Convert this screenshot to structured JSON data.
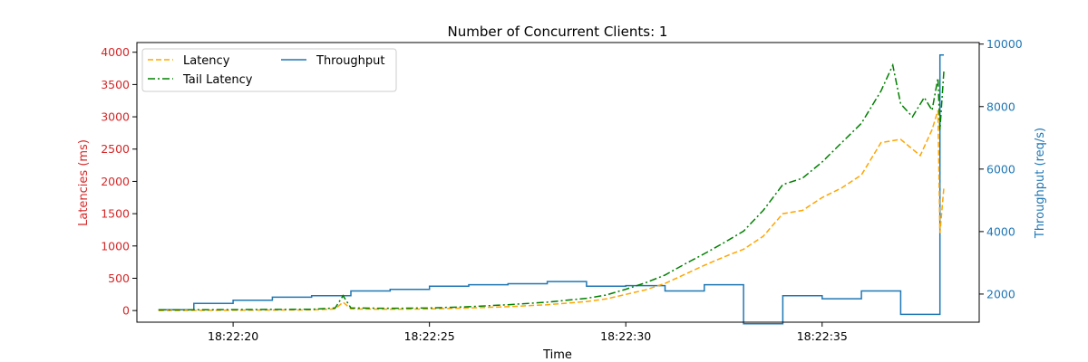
{
  "chart_data": {
    "type": "line",
    "title": "Number of Concurrent Clients: 1",
    "xlabel": "Time",
    "ylabel_left": "Latencies (ms)",
    "ylabel_right": "Throughput (req/s)",
    "x_ticks": [
      "18:22:20",
      "18:22:25",
      "18:22:30",
      "18:22:35"
    ],
    "x_tick_seconds": [
      20,
      25,
      30,
      35
    ],
    "xlim": [
      17.55,
      39.0
    ],
    "ylim_left": [
      -180,
      4150
    ],
    "ylim_right": [
      1100,
      10050
    ],
    "y_ticks_left": [
      0,
      500,
      1000,
      1500,
      2000,
      2500,
      3000,
      3500,
      4000
    ],
    "y_ticks_right": [
      2000,
      4000,
      6000,
      8000,
      10000
    ],
    "legend_position": "top-left",
    "grid": false,
    "colors": {
      "latency": "#FFA500",
      "tail": "#008000",
      "throughput": "#1f77b4",
      "left_axis": "#d62728",
      "right_axis": "#1f77b4"
    },
    "series": [
      {
        "name": "Latency",
        "axis": "left",
        "style": "dashed",
        "x": [
          18.1,
          19.0,
          20.0,
          21.0,
          22.0,
          22.6,
          22.8,
          23.0,
          24.0,
          25.0,
          26.0,
          27.0,
          28.0,
          29.0,
          29.5,
          30.0,
          30.5,
          31.0,
          31.5,
          32.0,
          32.5,
          33.0,
          33.5,
          34.0,
          34.5,
          35.0,
          35.5,
          36.0,
          36.5,
          37.0,
          37.5,
          37.8,
          37.95,
          38.0,
          38.1
        ],
        "y": [
          0,
          2,
          5,
          8,
          10,
          25,
          130,
          25,
          20,
          25,
          40,
          60,
          90,
          140,
          180,
          250,
          320,
          420,
          560,
          700,
          830,
          950,
          1150,
          1500,
          1550,
          1750,
          1900,
          2100,
          2600,
          2650,
          2400,
          2800,
          3100,
          1200,
          1900
        ]
      },
      {
        "name": "Tail Latency",
        "axis": "left",
        "style": "dashdot",
        "x": [
          18.1,
          19.0,
          20.0,
          21.0,
          22.0,
          22.6,
          22.8,
          23.0,
          24.0,
          25.0,
          26.0,
          27.0,
          28.0,
          29.0,
          29.5,
          30.0,
          30.5,
          31.0,
          31.5,
          32.0,
          32.5,
          33.0,
          33.5,
          34.0,
          34.5,
          35.0,
          35.5,
          36.0,
          36.5,
          36.8,
          37.0,
          37.3,
          37.6,
          37.8,
          37.95,
          38.0,
          38.1
        ],
        "y": [
          10,
          12,
          15,
          18,
          20,
          40,
          230,
          40,
          35,
          40,
          60,
          90,
          130,
          190,
          240,
          330,
          430,
          550,
          720,
          880,
          1050,
          1230,
          1550,
          1950,
          2050,
          2300,
          2600,
          2900,
          3400,
          3800,
          3200,
          3000,
          3300,
          3100,
          3600,
          2800,
          3700
        ]
      },
      {
        "name": "Throughput",
        "axis": "right",
        "style": "solid",
        "step": true,
        "x": [
          18.1,
          19.0,
          20.0,
          21.0,
          22.0,
          23.0,
          24.0,
          25.0,
          26.0,
          27.0,
          28.0,
          29.0,
          30.0,
          31.0,
          32.0,
          33.0,
          34.0,
          35.0,
          36.0,
          37.0,
          38.0,
          38.1
        ],
        "y": [
          1500,
          1700,
          1800,
          1900,
          1950,
          2100,
          2150,
          2250,
          2300,
          2330,
          2400,
          2250,
          2270,
          2100,
          2300,
          1050,
          1950,
          1850,
          2100,
          1350,
          9650,
          9650
        ]
      }
    ]
  }
}
